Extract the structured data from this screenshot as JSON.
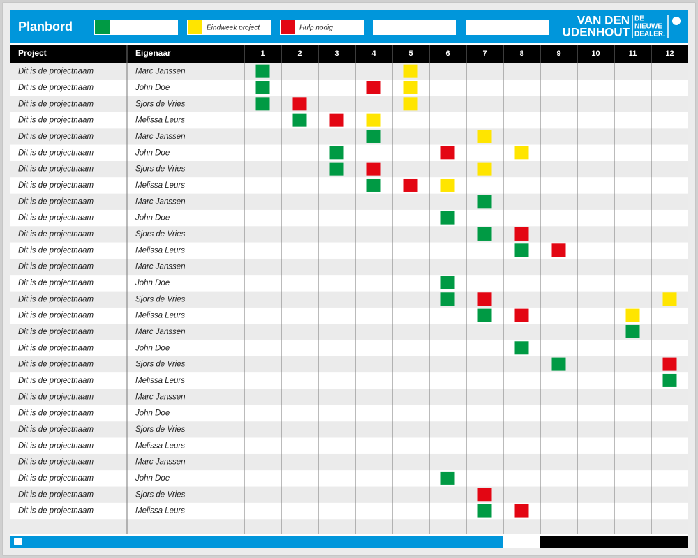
{
  "header": {
    "title": "Planbord",
    "legend": [
      {
        "color": "#009a44"
      },
      {
        "color": "#ffe500",
        "label": "Eindweek project"
      },
      {
        "color": "#e30613",
        "label": "Hulp nodig"
      }
    ],
    "logo": {
      "line1": "VAN DEN",
      "line2": "UDENHOUT",
      "tag1": "DE",
      "tag2": "NIEUWE",
      "tag3": "DEALER."
    }
  },
  "table": {
    "columns": {
      "project": "Project",
      "owner": "Eigenaar",
      "weeks": [
        "1",
        "2",
        "3",
        "4",
        "5",
        "6",
        "7",
        "8",
        "9",
        "10",
        "11",
        "12"
      ]
    },
    "rows": [
      {
        "project": "Dit is de projectnaam",
        "owner": "Marc Janssen",
        "cells": [
          0,
          null,
          null,
          null,
          1,
          null,
          null,
          null,
          null,
          null,
          null,
          null
        ]
      },
      {
        "project": "Dit is de projectnaam",
        "owner": "John Doe",
        "cells": [
          0,
          null,
          null,
          2,
          1,
          null,
          null,
          null,
          null,
          null,
          null,
          null
        ]
      },
      {
        "project": "Dit is de projectnaam",
        "owner": "Sjors de Vries",
        "cells": [
          0,
          2,
          null,
          null,
          1,
          null,
          null,
          null,
          null,
          null,
          null,
          null
        ]
      },
      {
        "project": "Dit is de projectnaam",
        "owner": "Melissa Leurs",
        "cells": [
          null,
          0,
          2,
          1,
          null,
          null,
          null,
          null,
          null,
          null,
          null,
          null
        ]
      },
      {
        "project": "Dit is de projectnaam",
        "owner": "Marc Janssen",
        "cells": [
          null,
          null,
          null,
          0,
          null,
          null,
          1,
          null,
          null,
          null,
          null,
          null
        ]
      },
      {
        "project": "Dit is de projectnaam",
        "owner": "John Doe",
        "cells": [
          null,
          null,
          0,
          null,
          null,
          2,
          null,
          1,
          null,
          null,
          null,
          null
        ]
      },
      {
        "project": "Dit is de projectnaam",
        "owner": "Sjors de Vries",
        "cells": [
          null,
          null,
          0,
          2,
          null,
          null,
          1,
          null,
          null,
          null,
          null,
          null
        ]
      },
      {
        "project": "Dit is de projectnaam",
        "owner": "Melissa Leurs",
        "cells": [
          null,
          null,
          null,
          0,
          2,
          1,
          null,
          null,
          null,
          null,
          null,
          null
        ]
      },
      {
        "project": "Dit is de projectnaam",
        "owner": "Marc Janssen",
        "cells": [
          null,
          null,
          null,
          null,
          null,
          null,
          0,
          null,
          null,
          null,
          null,
          null
        ]
      },
      {
        "project": "Dit is de projectnaam",
        "owner": "John Doe",
        "cells": [
          null,
          null,
          null,
          null,
          null,
          0,
          null,
          null,
          null,
          null,
          null,
          null
        ]
      },
      {
        "project": "Dit is de projectnaam",
        "owner": "Sjors de Vries",
        "cells": [
          null,
          null,
          null,
          null,
          null,
          null,
          0,
          2,
          null,
          null,
          null,
          null
        ]
      },
      {
        "project": "Dit is de projectnaam",
        "owner": "Melissa Leurs",
        "cells": [
          null,
          null,
          null,
          null,
          null,
          null,
          null,
          0,
          2,
          null,
          null,
          null
        ]
      },
      {
        "project": "Dit is de projectnaam",
        "owner": "Marc Janssen",
        "cells": [
          null,
          null,
          null,
          null,
          null,
          null,
          null,
          null,
          null,
          null,
          null,
          null
        ]
      },
      {
        "project": "Dit is de projectnaam",
        "owner": "John Doe",
        "cells": [
          null,
          null,
          null,
          null,
          null,
          0,
          null,
          null,
          null,
          null,
          null,
          null
        ]
      },
      {
        "project": "Dit is de projectnaam",
        "owner": "Sjors de Vries",
        "cells": [
          null,
          null,
          null,
          null,
          null,
          0,
          2,
          null,
          null,
          null,
          null,
          1
        ]
      },
      {
        "project": "Dit is de projectnaam",
        "owner": "Melissa Leurs",
        "cells": [
          null,
          null,
          null,
          null,
          null,
          null,
          0,
          2,
          null,
          null,
          1,
          null
        ]
      },
      {
        "project": "Dit is de projectnaam",
        "owner": "Marc Janssen",
        "cells": [
          null,
          null,
          null,
          null,
          null,
          null,
          null,
          null,
          null,
          null,
          0,
          null
        ]
      },
      {
        "project": "Dit is de projectnaam",
        "owner": "John Doe",
        "cells": [
          null,
          null,
          null,
          null,
          null,
          null,
          null,
          0,
          null,
          null,
          null,
          null
        ]
      },
      {
        "project": "Dit is de projectnaam",
        "owner": "Sjors de Vries",
        "cells": [
          null,
          null,
          null,
          null,
          null,
          null,
          null,
          null,
          0,
          null,
          null,
          2
        ]
      },
      {
        "project": "Dit is de projectnaam",
        "owner": "Melissa Leurs",
        "cells": [
          null,
          null,
          null,
          null,
          null,
          null,
          null,
          null,
          null,
          null,
          null,
          0
        ]
      },
      {
        "project": "Dit is de projectnaam",
        "owner": "Marc Janssen",
        "cells": [
          null,
          null,
          null,
          null,
          null,
          null,
          null,
          null,
          null,
          null,
          null,
          null
        ]
      },
      {
        "project": "Dit is de projectnaam",
        "owner": "John Doe",
        "cells": [
          null,
          null,
          null,
          null,
          null,
          null,
          null,
          null,
          null,
          null,
          null,
          null
        ]
      },
      {
        "project": "Dit is de projectnaam",
        "owner": "Sjors de Vries",
        "cells": [
          null,
          null,
          null,
          null,
          null,
          null,
          null,
          null,
          null,
          null,
          null,
          null
        ]
      },
      {
        "project": "Dit is de projectnaam",
        "owner": "Melissa Leurs",
        "cells": [
          null,
          null,
          null,
          null,
          null,
          null,
          null,
          null,
          null,
          null,
          null,
          null
        ]
      },
      {
        "project": "Dit is de projectnaam",
        "owner": "Marc Janssen",
        "cells": [
          null,
          null,
          null,
          null,
          null,
          null,
          null,
          null,
          null,
          null,
          null,
          null
        ]
      },
      {
        "project": "Dit is de projectnaam",
        "owner": "John Doe",
        "cells": [
          null,
          null,
          null,
          null,
          null,
          0,
          null,
          null,
          null,
          null,
          null,
          null
        ]
      },
      {
        "project": "Dit is de projectnaam",
        "owner": "Sjors de Vries",
        "cells": [
          null,
          null,
          null,
          null,
          null,
          null,
          2,
          null,
          null,
          null,
          null,
          null
        ]
      },
      {
        "project": "Dit is de projectnaam",
        "owner": "Melissa Leurs",
        "cells": [
          null,
          null,
          null,
          null,
          null,
          null,
          0,
          2,
          null,
          null,
          null,
          null
        ]
      }
    ]
  }
}
